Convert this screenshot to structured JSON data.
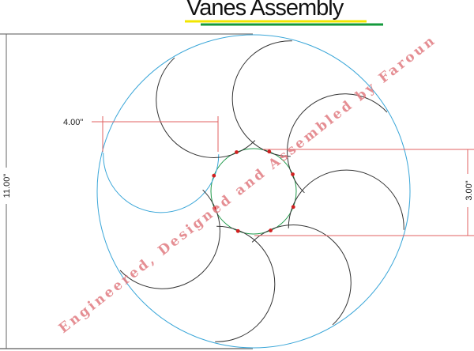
{
  "title": "Vanes Assembly",
  "title_underline_colors": [
    "#f2e600",
    "#149a3c"
  ],
  "dimensions": {
    "overall_diameter": "11.00\"",
    "vane_diameter": "4.00\"",
    "hub_diameter": "3.00\""
  },
  "vane_count": 8,
  "watermark": "Engineered, Designed and Assembled by Faroun",
  "colors": {
    "outer_circle": "#3aa6d8",
    "hub_circle": "#1f9a4a",
    "vane": "#333333",
    "highlight_vane": "#3aa6d8",
    "dimension": "#e06060",
    "contact_points": "#d02020",
    "frame_lines": "#777777"
  }
}
